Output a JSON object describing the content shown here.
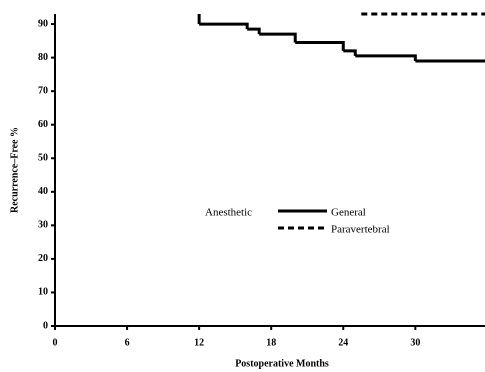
{
  "chart_data": {
    "type": "line",
    "step": true,
    "ylabel": "Recurrence–Free %",
    "xlabel": "Postoperative Months",
    "xlim": [
      0,
      35.8
    ],
    "ylim": [
      0,
      93
    ],
    "xticks": [
      0,
      6,
      12,
      18,
      24,
      30
    ],
    "yticks": [
      0,
      10,
      20,
      30,
      40,
      50,
      60,
      70,
      80,
      90
    ],
    "legend_title": "Anesthetic",
    "series": [
      {
        "name": "General",
        "color": "#000000",
        "dash": false,
        "x": [
          12,
          12,
          16,
          17,
          20,
          24,
          25,
          30,
          35.8
        ],
        "values": [
          93,
          90,
          88.5,
          87,
          84.5,
          82,
          80.5,
          79,
          79
        ]
      },
      {
        "name": "Paravertebral",
        "color": "#000000",
        "dash": true,
        "x": [
          25.5,
          35.8
        ],
        "values": [
          93,
          93
        ]
      }
    ]
  }
}
